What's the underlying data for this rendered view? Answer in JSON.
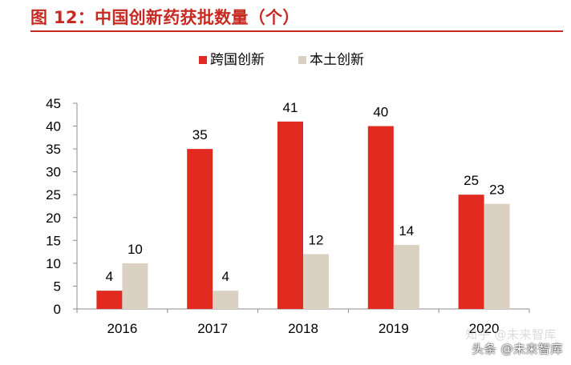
{
  "header": {
    "title": "图 12：中国创新药获批数量（个）",
    "title_color": "#c62a22"
  },
  "watermark": {
    "faint_text": "知乎 @未来智库",
    "text": "头条 @未来智库"
  },
  "chart_data": {
    "type": "bar",
    "title": "图 12：中国创新药获批数量（个）",
    "xlabel": "",
    "ylabel": "",
    "categories": [
      "2016",
      "2017",
      "2018",
      "2019",
      "2020"
    ],
    "ylim": [
      0,
      45
    ],
    "yticks": [
      0,
      5,
      10,
      15,
      20,
      25,
      30,
      35,
      40,
      45
    ],
    "grid": false,
    "legend_position": "top",
    "series": [
      {
        "name": "跨国创新",
        "color": "#e02a1f",
        "values": [
          4,
          35,
          41,
          40,
          25
        ]
      },
      {
        "name": "本土创新",
        "color": "#dad1c2",
        "values": [
          10,
          4,
          12,
          14,
          23
        ]
      }
    ],
    "data_labels": true
  }
}
